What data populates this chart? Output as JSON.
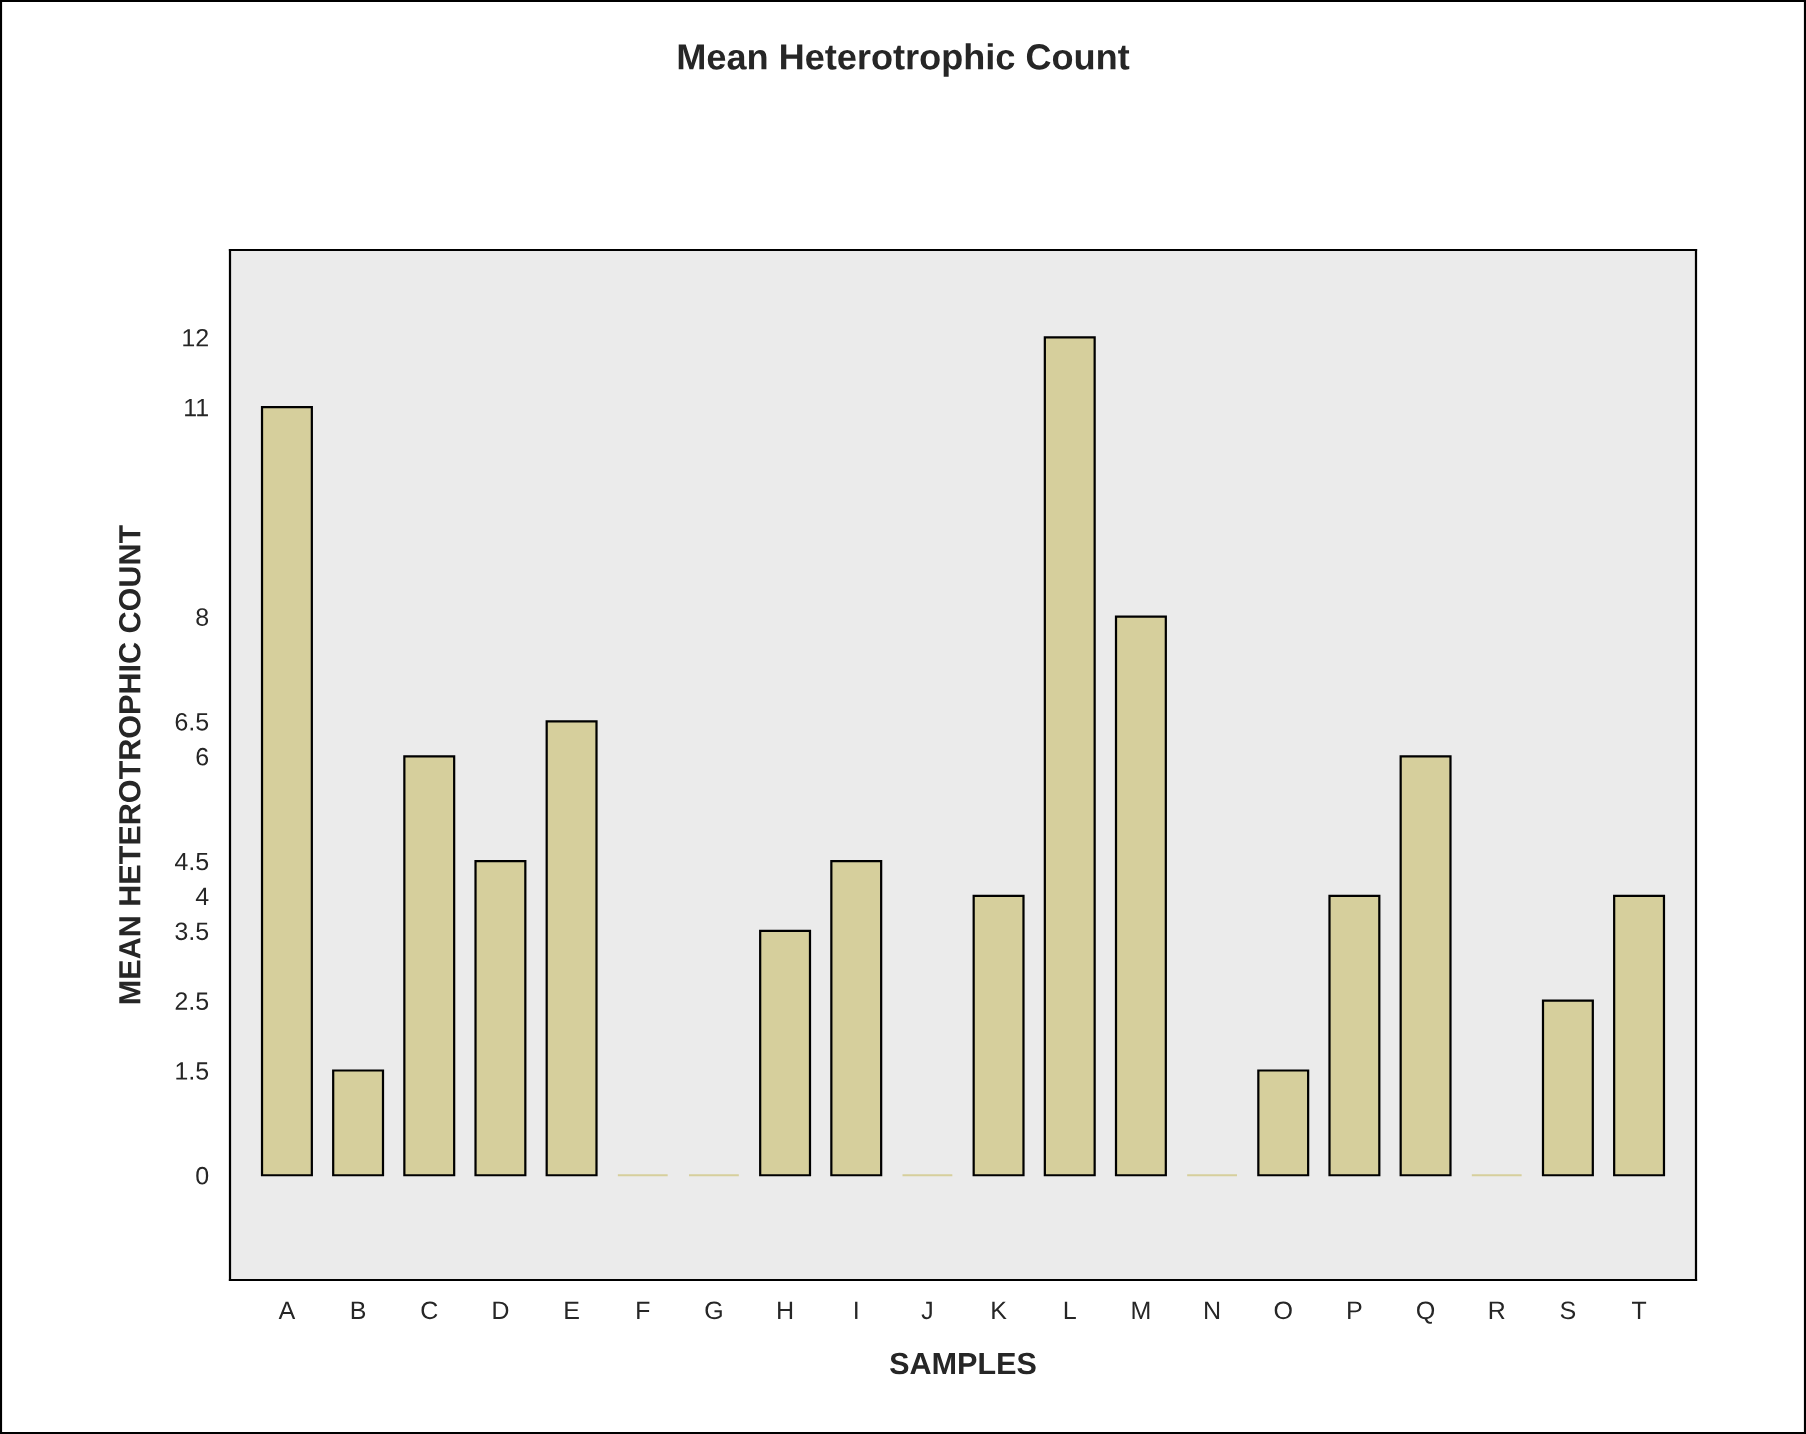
{
  "chart_data": {
    "type": "bar",
    "title": "Mean Heterotrophic Count",
    "xlabel": "SAMPLES",
    "ylabel": "MEAN HETEROTROPHIC COUNT",
    "categories": [
      "A",
      "B",
      "C",
      "D",
      "E",
      "F",
      "G",
      "H",
      "I",
      "J",
      "K",
      "L",
      "M",
      "N",
      "O",
      "P",
      "Q",
      "R",
      "S",
      "T"
    ],
    "values": [
      11,
      1.5,
      6,
      4.5,
      6.5,
      0,
      0,
      3.5,
      4.5,
      0,
      4,
      12,
      8,
      0,
      1.5,
      4,
      6,
      0,
      2.5,
      4
    ],
    "color": "#d6cf9c",
    "ylim": [
      -1.5,
      13.25
    ],
    "yticks": [
      0,
      1.5,
      2.5,
      3.5,
      4,
      4.5,
      6,
      6.5,
      8,
      11,
      12
    ],
    "grid": false,
    "legend": false
  }
}
